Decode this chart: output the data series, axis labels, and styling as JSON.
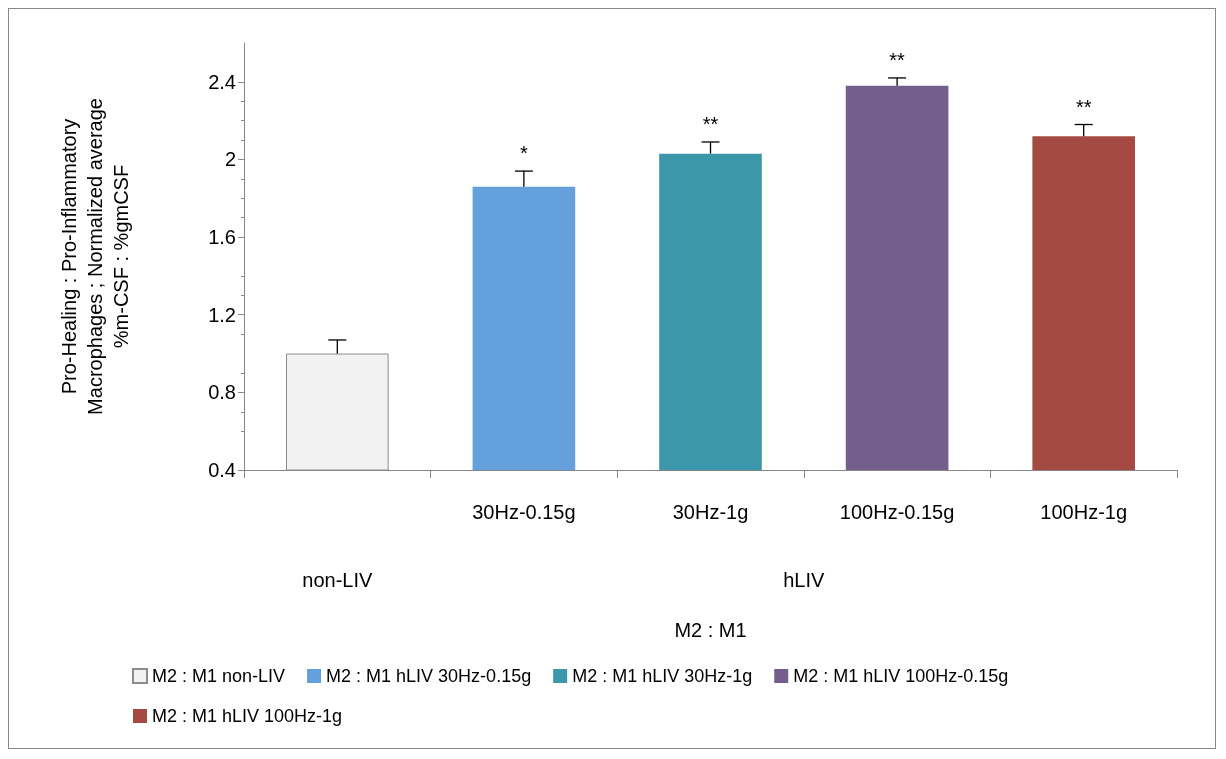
{
  "chart_data": {
    "type": "bar",
    "ylabel": "Pro-Healing : Pro-Inflammatory Macrophages ; Normalized average %m-CSF : %gmCSF",
    "xlabel": "M2 : M1",
    "categories": [
      null,
      "30Hz-0.15g",
      "30Hz-1g",
      "100Hz-0.15g",
      "100Hz-1g"
    ],
    "annotations": [
      "non-LIV",
      "hLIV"
    ],
    "ylim": [
      0.4,
      2.6
    ],
    "yticks": [
      0.4,
      0.8,
      1.2,
      1.6,
      2,
      2.4
    ],
    "grid": false,
    "legend": "bottom",
    "series": [
      {
        "name": "M2 : M1 non-LIV",
        "color": "#f2f2f2",
        "values": [
          1.0,
          null,
          null,
          null,
          null
        ],
        "errors": [
          [
            1.0,
            1.07
          ],
          null,
          null,
          null,
          null
        ],
        "value_labels": [
          null,
          null,
          null,
          null,
          null
        ]
      },
      {
        "name": "M2 : M1 hLIV 30Hz-0.15g",
        "color": "#63a0dc",
        "values": [
          null,
          1.86,
          null,
          null,
          null
        ],
        "errors": [
          null,
          [
            1.86,
            1.94
          ],
          null,
          null,
          null
        ],
        "value_labels": [
          null,
          "*",
          null,
          null,
          null
        ]
      },
      {
        "name": "M2 : M1 hLIV 30Hz-1g",
        "color": "#3c97ab",
        "values": [
          null,
          null,
          2.03,
          null,
          null
        ],
        "errors": [
          null,
          null,
          [
            2.03,
            2.09
          ],
          null,
          null
        ],
        "value_labels": [
          null,
          null,
          "**",
          null,
          null
        ]
      },
      {
        "name": "M2 : M1 hLIV 100Hz-0.15g",
        "color": "#745f8c",
        "values": [
          null,
          null,
          null,
          2.38,
          null
        ],
        "errors": [
          null,
          null,
          null,
          [
            2.38,
            2.42
          ],
          null
        ],
        "value_labels": [
          null,
          null,
          null,
          "**",
          null
        ]
      },
      {
        "name": "M2 : M1 hLIV 100Hz-1g",
        "color": "#a54a42",
        "values": [
          null,
          null,
          null,
          null,
          2.12
        ],
        "errors": [
          null,
          null,
          null,
          null,
          [
            2.12,
            2.18
          ]
        ],
        "value_labels": [
          null,
          null,
          null,
          null,
          "**"
        ]
      }
    ]
  }
}
